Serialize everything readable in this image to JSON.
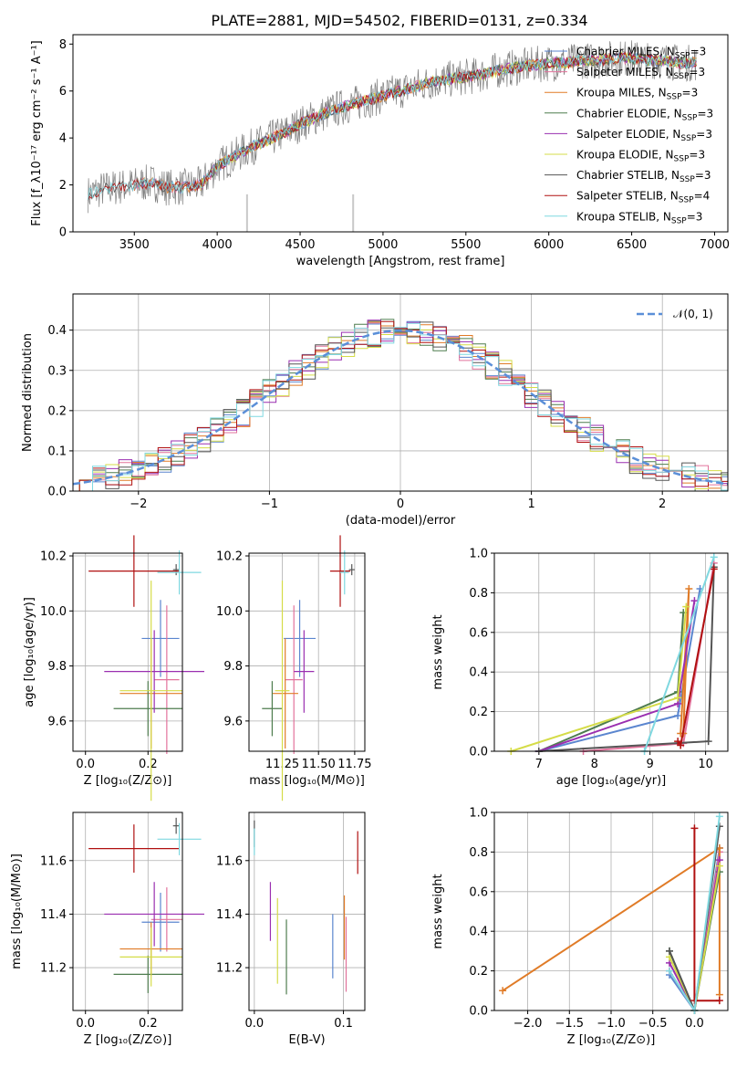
{
  "figure": {
    "title": "PLATE=2881, MJD=54502, FIBERID=0131, z=0.334"
  },
  "colors": {
    "chabrier_miles": "#5b86cf",
    "salpeter_miles": "#e2739c",
    "kroupa_miles": "#e07b27",
    "chabrier_elodie": "#4f7d4f",
    "salpeter_elodie": "#9a2fb0",
    "kroupa_elodie": "#d5dc48",
    "chabrier_stelib": "#555555",
    "salpeter_stelib": "#b01010",
    "kroupa_stelib": "#7fd8e0",
    "data": "#7f7f7f",
    "normal": "#5b8fd8"
  },
  "chart_data": [
    {
      "id": "spectrum",
      "type": "line",
      "xlabel": "wavelength [Angstrom, rest frame]",
      "ylabel": "Flux [f_λ10⁻¹⁷ erg cm⁻² s⁻¹ A⁻¹]",
      "xlim": [
        3130,
        7080
      ],
      "ylim": [
        0,
        8.4
      ],
      "xticks": [
        3500,
        4000,
        4500,
        5000,
        5500,
        6000,
        6500,
        7000
      ],
      "yticks": [
        0,
        2,
        4,
        6,
        8
      ],
      "legend_position": "top-right",
      "grid": false,
      "continuum": {
        "x": [
          3220,
          3300,
          3400,
          3500,
          3600,
          3700,
          3800,
          3900,
          3950,
          4000,
          4100,
          4200,
          4300,
          4400,
          4500,
          4600,
          4700,
          4800,
          4900,
          5000,
          5100,
          5200,
          5300,
          5400,
          5500,
          5600,
          5700,
          5800,
          5900,
          6000,
          6100,
          6200,
          6300,
          6400,
          6500,
          6600,
          6700,
          6800,
          6890
        ],
        "y": [
          1.6,
          1.8,
          1.9,
          2.0,
          2.1,
          1.9,
          1.9,
          2.0,
          2.4,
          2.8,
          3.2,
          3.6,
          3.9,
          4.2,
          4.6,
          4.9,
          5.2,
          5.4,
          5.6,
          5.8,
          6.0,
          6.2,
          6.4,
          6.5,
          6.6,
          6.7,
          6.9,
          7.0,
          7.1,
          7.2,
          7.2,
          7.3,
          7.3,
          7.4,
          7.4,
          7.3,
          7.3,
          7.2,
          7.2
        ]
      },
      "series": [
        {
          "name": "Chabrier MILES, N_SSP=3",
          "color_key": "chabrier_miles",
          "x_start": 3500
        },
        {
          "name": "Salpeter MILES, N_SSP=3",
          "color_key": "salpeter_miles",
          "x_start": 3500
        },
        {
          "name": "Kroupa MILES, N_SSP=3",
          "color_key": "kroupa_miles",
          "x_start": 3500
        },
        {
          "name": "Chabrier ELODIE, N_SSP=3",
          "color_key": "chabrier_elodie",
          "x_start": 3900
        },
        {
          "name": "Salpeter ELODIE, N_SSP=3",
          "color_key": "salpeter_elodie",
          "x_start": 3900
        },
        {
          "name": "Kroupa ELODIE, N_SSP=3",
          "color_key": "kroupa_elodie",
          "x_start": 3900
        },
        {
          "name": "Chabrier STELIB, N_SSP=3",
          "color_key": "chabrier_stelib",
          "x_start": 3220
        },
        {
          "name": "Salpeter STELIB, N_SSP=4",
          "color_key": "salpeter_stelib",
          "x_start": 3220
        },
        {
          "name": "Kroupa STELIB, N_SSP=3",
          "color_key": "kroupa_stelib",
          "x_start": 3220
        }
      ]
    },
    {
      "id": "residuals",
      "type": "bar",
      "xlabel": "(data-model)/error",
      "ylabel": "Normed distribution",
      "xlim": [
        -2.5,
        2.5
      ],
      "ylim": [
        0,
        0.49
      ],
      "xticks": [
        -2,
        -1,
        0,
        1,
        2
      ],
      "yticks": [
        0.0,
        0.1,
        0.2,
        0.3,
        0.4
      ],
      "grid": true,
      "legend_position": "top-right",
      "legend": [
        "𝒩(0, 1)"
      ],
      "bin_width": 0.1,
      "normal_curve": {
        "mean": 0,
        "sigma": 1
      }
    },
    {
      "id": "age_vs_Z",
      "type": "scatter",
      "xlabel": "Z [log₁₀(Z/Z⊙)]",
      "ylabel": "age  [log₁₀(age/yr)]",
      "xlim": [
        -0.04,
        0.31
      ],
      "ylim": [
        9.49,
        10.21
      ],
      "xticks": [
        0.0,
        0.2
      ],
      "yticks": [
        9.6,
        9.8,
        10.0,
        10.2
      ],
      "grid": true,
      "points": [
        {
          "c": "chabrier_miles",
          "x": 0.24,
          "y": 9.9,
          "ex": 0.06,
          "ey": 0.14
        },
        {
          "c": "salpeter_miles",
          "x": 0.26,
          "y": 9.75,
          "ex": 0.04,
          "ey": 0.27
        },
        {
          "c": "kroupa_miles",
          "x": 0.21,
          "y": 9.7,
          "ex": 0.1,
          "ey": 0.2
        },
        {
          "c": "chabrier_elodie",
          "x": 0.2,
          "y": 9.645,
          "ex": 0.11,
          "ey": 0.1
        },
        {
          "c": "salpeter_elodie",
          "x": 0.22,
          "y": 9.78,
          "ex": 0.16,
          "ey": 0.15
        },
        {
          "c": "kroupa_elodie",
          "x": 0.21,
          "y": 9.71,
          "ex": 0.1,
          "ey": 0.4
        },
        {
          "c": "chabrier_stelib",
          "x": 0.29,
          "y": 10.15,
          "ex": 0.01,
          "ey": 0.02
        },
        {
          "c": "salpeter_stelib",
          "x": 0.155,
          "y": 10.145,
          "ex": 0.145,
          "ey": 0.13
        },
        {
          "c": "kroupa_stelib",
          "x": 0.3,
          "y": 10.14,
          "ex": 0.07,
          "ey": 0.08
        }
      ]
    },
    {
      "id": "age_vs_mass",
      "type": "scatter",
      "xlabel": "mass [log₁₀(M/M⊙)]",
      "ylabel": "",
      "xlim": [
        11.02,
        11.82
      ],
      "ylim": [
        9.49,
        10.21
      ],
      "xticks": [
        11.25,
        11.5,
        11.75
      ],
      "xticklabels": [
        "11.25",
        "11.50",
        "11.75"
      ],
      "yticks": [
        9.6,
        9.8,
        10.0,
        10.2
      ],
      "grid": true,
      "points": [
        {
          "c": "chabrier_miles",
          "x": 11.37,
          "y": 9.9,
          "ex": 0.11,
          "ey": 0.14
        },
        {
          "c": "salpeter_miles",
          "x": 11.33,
          "y": 9.75,
          "ex": 0.06,
          "ey": 0.27
        },
        {
          "c": "kroupa_miles",
          "x": 11.27,
          "y": 9.7,
          "ex": 0.09,
          "ey": 0.2
        },
        {
          "c": "chabrier_elodie",
          "x": 11.18,
          "y": 9.645,
          "ex": 0.07,
          "ey": 0.1
        },
        {
          "c": "salpeter_elodie",
          "x": 11.4,
          "y": 9.78,
          "ex": 0.07,
          "ey": 0.15
        },
        {
          "c": "kroupa_elodie",
          "x": 11.25,
          "y": 9.71,
          "ex": 0.05,
          "ey": 0.4
        },
        {
          "c": "chabrier_stelib",
          "x": 11.73,
          "y": 10.15,
          "ex": 0.02,
          "ey": 0.02
        },
        {
          "c": "salpeter_stelib",
          "x": 11.65,
          "y": 10.145,
          "ex": 0.07,
          "ey": 0.13
        },
        {
          "c": "kroupa_stelib",
          "x": 11.68,
          "y": 10.14,
          "ex": 0.03,
          "ey": 0.08
        }
      ]
    },
    {
      "id": "mass_weight_vs_age",
      "type": "line",
      "xlabel": "age  [log₁₀(age/yr)]",
      "ylabel": "mass weight",
      "xlim": [
        6.2,
        10.4
      ],
      "ylim": [
        0,
        1
      ],
      "xticks": [
        7,
        8,
        9,
        10
      ],
      "yticks": [
        0.0,
        0.2,
        0.4,
        0.6,
        0.8,
        1.0
      ],
      "grid": true,
      "series": [
        {
          "c": "chabrier_miles",
          "x": [
            7.0,
            9.5,
            9.9
          ],
          "y": [
            0.0,
            0.18,
            0.82
          ]
        },
        {
          "c": "salpeter_miles",
          "x": [
            7.8,
            9.6,
            10.15
          ],
          "y": [
            0.0,
            0.04,
            0.95
          ]
        },
        {
          "c": "kroupa_miles",
          "x": [
            9.6,
            9.7,
            9.55
          ],
          "y": [
            0.09,
            0.82,
            0.09
          ]
        },
        {
          "c": "chabrier_elodie",
          "x": [
            7.0,
            9.5,
            9.6
          ],
          "y": [
            0.0,
            0.3,
            0.7
          ]
        },
        {
          "c": "salpeter_elodie",
          "x": [
            7.0,
            9.5,
            9.8
          ],
          "y": [
            0.0,
            0.24,
            0.76
          ]
        },
        {
          "c": "kroupa_elodie",
          "x": [
            6.5,
            9.5,
            9.65
          ],
          "y": [
            0.0,
            0.27,
            0.73
          ]
        },
        {
          "c": "chabrier_stelib",
          "x": [
            7.0,
            10.05,
            10.15
          ],
          "y": [
            0.0,
            0.05,
            0.93
          ]
        },
        {
          "c": "salpeter_stelib",
          "x": [
            9.5,
            9.55,
            10.15
          ],
          "y": [
            0.05,
            0.03,
            0.92
          ]
        },
        {
          "c": "kroupa_stelib",
          "x": [
            8.9,
            10.15
          ],
          "y": [
            0.0,
            0.98
          ]
        }
      ]
    },
    {
      "id": "mass_vs_Z",
      "type": "scatter",
      "xlabel": "Z [log₁₀(Z/Z⊙)]",
      "ylabel": "mass [log₁₀(M/M⊙)]",
      "xlim": [
        -0.04,
        0.31
      ],
      "ylim": [
        11.04,
        11.78
      ],
      "xticks": [
        0.0,
        0.2
      ],
      "yticks": [
        11.2,
        11.4,
        11.6
      ],
      "grid": true,
      "points": [
        {
          "c": "chabrier_miles",
          "x": 0.24,
          "y": 11.37,
          "ex": 0.06,
          "ey": 0.11
        },
        {
          "c": "salpeter_miles",
          "x": 0.26,
          "y": 11.38,
          "ex": 0.05,
          "ey": 0.12
        },
        {
          "c": "kroupa_miles",
          "x": 0.21,
          "y": 11.27,
          "ex": 0.1,
          "ey": 0.1
        },
        {
          "c": "chabrier_elodie",
          "x": 0.2,
          "y": 11.175,
          "ex": 0.11,
          "ey": 0.07
        },
        {
          "c": "salpeter_elodie",
          "x": 0.22,
          "y": 11.4,
          "ex": 0.16,
          "ey": 0.12
        },
        {
          "c": "kroupa_elodie",
          "x": 0.21,
          "y": 11.24,
          "ex": 0.1,
          "ey": 0.11
        },
        {
          "c": "chabrier_stelib",
          "x": 0.29,
          "y": 11.73,
          "ex": 0.01,
          "ey": 0.03
        },
        {
          "c": "salpeter_stelib",
          "x": 0.155,
          "y": 11.645,
          "ex": 0.145,
          "ey": 0.09
        },
        {
          "c": "kroupa_stelib",
          "x": 0.3,
          "y": 11.68,
          "ex": 0.07,
          "ey": 0.06
        }
      ]
    },
    {
      "id": "mass_vs_ebv",
      "type": "scatter",
      "xlabel": "E(B-V)",
      "ylabel": "",
      "xlim": [
        -0.006,
        0.124
      ],
      "ylim": [
        11.04,
        11.78
      ],
      "xticks": [
        0.0,
        0.1
      ],
      "yticks": [
        11.2,
        11.4,
        11.6
      ],
      "grid": true,
      "points": [
        {
          "c": "chabrier_miles",
          "x": 0.088,
          "y": 11.28,
          "ex": 0,
          "ey": 0.12
        },
        {
          "c": "salpeter_miles",
          "x": 0.103,
          "y": 11.25,
          "ex": 0,
          "ey": 0.14
        },
        {
          "c": "kroupa_miles",
          "x": 0.101,
          "y": 11.35,
          "ex": 0,
          "ey": 0.12
        },
        {
          "c": "chabrier_elodie",
          "x": 0.036,
          "y": 11.24,
          "ex": 0,
          "ey": 0.14
        },
        {
          "c": "salpeter_elodie",
          "x": 0.018,
          "y": 11.41,
          "ex": 0,
          "ey": 0.11
        },
        {
          "c": "kroupa_elodie",
          "x": 0.026,
          "y": 11.3,
          "ex": 0,
          "ey": 0.16
        },
        {
          "c": "chabrier_stelib",
          "x": 0.0,
          "y": 11.7,
          "ex": 0,
          "ey": 0.05
        },
        {
          "c": "salpeter_stelib",
          "x": 0.116,
          "y": 11.63,
          "ex": 0,
          "ey": 0.08
        },
        {
          "c": "kroupa_stelib",
          "x": 0.0,
          "y": 11.67,
          "ex": 0,
          "ey": 0.05
        }
      ]
    },
    {
      "id": "mass_weight_vs_Z",
      "type": "line",
      "xlabel": "Z [log₁₀(Z/Z⊙)]",
      "ylabel": "mass weight",
      "xlim": [
        -2.4,
        0.4
      ],
      "ylim": [
        0,
        1
      ],
      "xticks": [
        -2.0,
        -1.5,
        -1.0,
        -0.5,
        0.0
      ],
      "xticklabels": [
        "−2.0",
        "−1.5",
        "−1.0",
        "−0.5",
        "0.0"
      ],
      "yticks": [
        0.0,
        0.2,
        0.4,
        0.6,
        0.8,
        1.0
      ],
      "grid": true,
      "series": [
        {
          "c": "chabrier_miles",
          "x": [
            -0.3,
            0.0,
            0.3
          ],
          "y": [
            0.18,
            0.0,
            0.82
          ]
        },
        {
          "c": "salpeter_miles",
          "x": [
            -0.3,
            0.0,
            0.3
          ],
          "y": [
            0.2,
            0.0,
            0.8
          ]
        },
        {
          "c": "kroupa_miles",
          "x": [
            -2.3,
            0.3,
            0.3
          ],
          "y": [
            0.1,
            0.82,
            0.08
          ]
        },
        {
          "c": "chabrier_elodie",
          "x": [
            -0.3,
            0.0,
            0.3
          ],
          "y": [
            0.3,
            0.0,
            0.7
          ]
        },
        {
          "c": "salpeter_elodie",
          "x": [
            -0.3,
            0.0,
            0.3
          ],
          "y": [
            0.24,
            0.0,
            0.76
          ]
        },
        {
          "c": "kroupa_elodie",
          "x": [
            -0.3,
            0.0,
            0.3
          ],
          "y": [
            0.27,
            0.0,
            0.73
          ]
        },
        {
          "c": "chabrier_stelib",
          "x": [
            -0.3,
            0.0,
            0.3
          ],
          "y": [
            0.3,
            0.0,
            0.93
          ]
        },
        {
          "c": "salpeter_stelib",
          "x": [
            0.0,
            0.0,
            0.3
          ],
          "y": [
            0.92,
            0.05,
            0.05
          ]
        },
        {
          "c": "kroupa_stelib",
          "x": [
            -0.3,
            0.0,
            0.3
          ],
          "y": [
            0.2,
            0.0,
            0.98
          ]
        }
      ]
    }
  ]
}
